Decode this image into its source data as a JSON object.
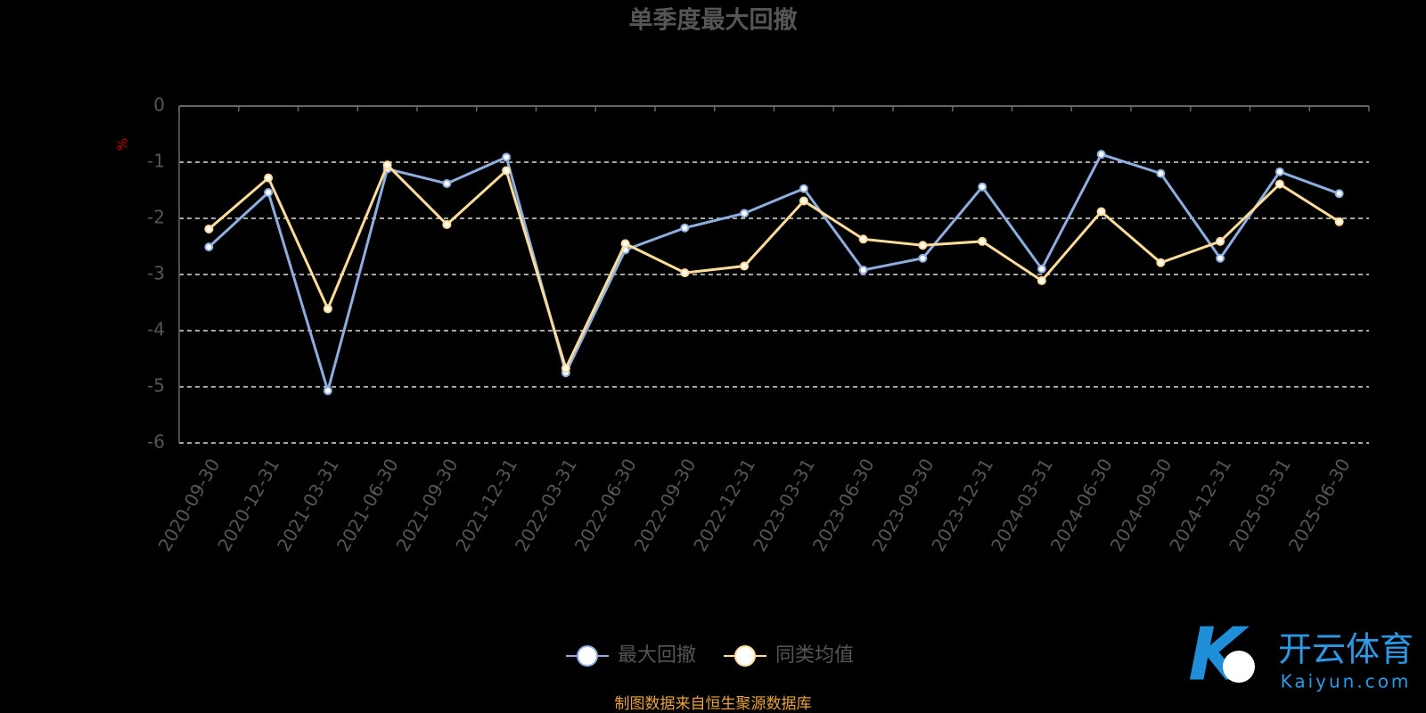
{
  "chart_data": {
    "type": "line",
    "title": "单季度最大回撤",
    "y_label": "%",
    "categories": [
      "2020-09-30",
      "2020-12-31",
      "2021-03-31",
      "2021-06-30",
      "2021-09-30",
      "2021-12-31",
      "2022-03-31",
      "2022-06-30",
      "2022-09-30",
      "2022-12-31",
      "2023-03-31",
      "2023-06-30",
      "2023-09-30",
      "2023-12-31",
      "2024-03-31",
      "2024-06-30",
      "2024-09-30",
      "2024-12-31",
      "2025-03-31",
      "2025-06-30"
    ],
    "series": [
      {
        "name": "最大回撤",
        "color": "#8eaee0",
        "values": [
          -2.51,
          -1.54,
          -5.07,
          -1.12,
          -1.38,
          -0.91,
          -4.75,
          -2.56,
          -2.17,
          -1.91,
          -1.47,
          -2.92,
          -2.71,
          -1.44,
          -2.9,
          -0.86,
          -1.2,
          -2.71,
          -1.17,
          -1.56
        ]
      },
      {
        "name": "同类均值",
        "color": "#ffdc9a",
        "values": [
          -2.19,
          -1.28,
          -3.61,
          -1.05,
          -2.11,
          -1.15,
          -4.67,
          -2.45,
          -2.97,
          -2.85,
          -1.69,
          -2.37,
          -2.48,
          -2.41,
          -3.11,
          -1.88,
          -2.79,
          -2.41,
          -1.39,
          -2.06
        ]
      }
    ],
    "ylim": [
      -6,
      0
    ],
    "yticks": [
      0,
      -1,
      -2,
      -3,
      -4,
      -5,
      -6
    ],
    "grid": true,
    "source": "制图数据来自恒生聚源数据库",
    "watermark": {
      "brand": "开云体育",
      "site": "Kaiyun.com"
    }
  }
}
